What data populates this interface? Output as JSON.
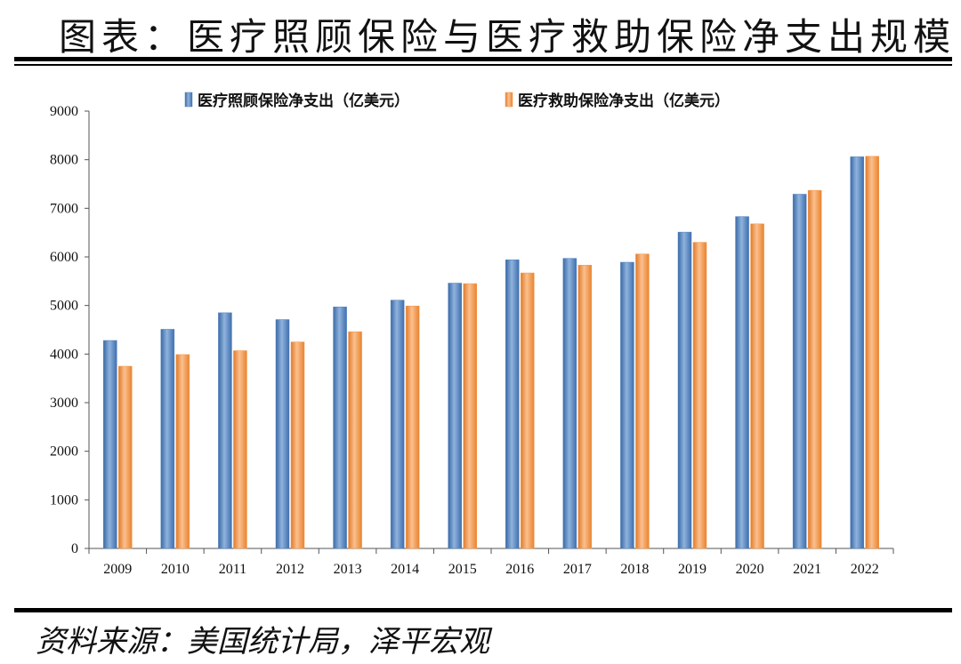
{
  "header": {
    "title": "图表：医疗照顾保险与医疗救助保险净支出规模"
  },
  "footer": {
    "source": "资料来源：美国统计局，泽平宏观"
  },
  "colors": {
    "series1": "#4f81bd",
    "series2": "#f79646"
  },
  "chart_data": {
    "type": "bar",
    "categories": [
      "2009",
      "2010",
      "2011",
      "2012",
      "2013",
      "2014",
      "2015",
      "2016",
      "2017",
      "2018",
      "2019",
      "2020",
      "2021",
      "2022"
    ],
    "series": [
      {
        "name": "医疗照顾保险净支出（亿美元）",
        "values": [
          4280,
          4510,
          4850,
          4710,
          4970,
          5110,
          5460,
          5940,
          5970,
          5890,
          6510,
          6830,
          7290,
          8060
        ]
      },
      {
        "name": "医疗救助保险净支出（亿美元）",
        "values": [
          3750,
          3990,
          4070,
          4250,
          4460,
          4990,
          5450,
          5670,
          5830,
          6060,
          6300,
          6680,
          7370,
          8070
        ]
      }
    ],
    "title": "",
    "xlabel": "",
    "ylabel": "",
    "ylim": [
      0,
      9000
    ],
    "yticks": [
      "0",
      "1000",
      "2000",
      "3000",
      "4000",
      "5000",
      "6000",
      "7000",
      "8000",
      "9000"
    ],
    "legend": "top-center",
    "grid": false
  }
}
